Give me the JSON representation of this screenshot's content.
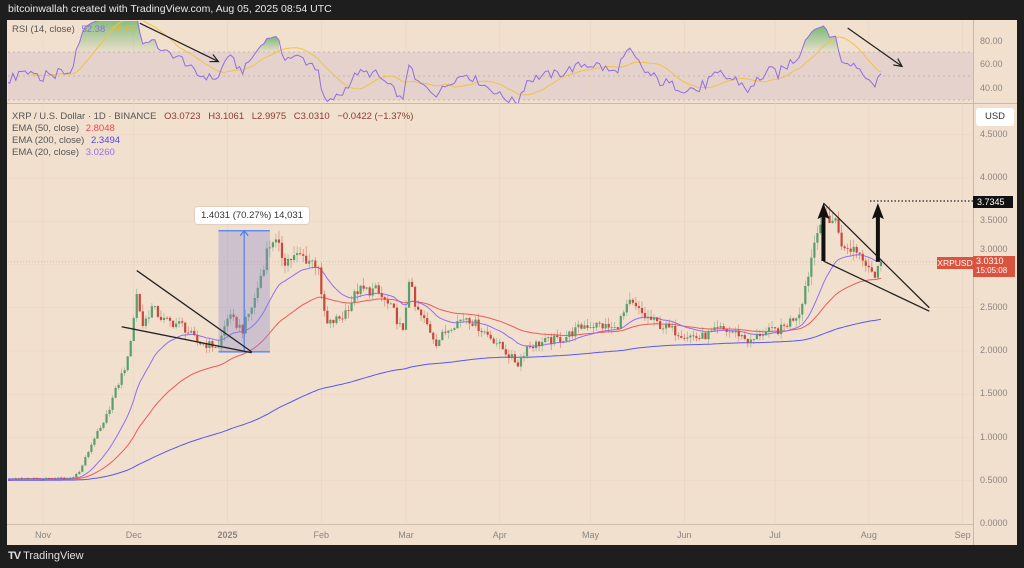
{
  "header": {
    "text": "bitcoinwallah created with TradingView.com, Aug 05, 2025 08:54 UTC"
  },
  "rsi_legend": {
    "label": "RSI (14, close)",
    "rsi_value": "52.38",
    "ma_value": "55.57"
  },
  "legend": {
    "symbol": "XRP / U.S. Dollar · 1D · BINANCE",
    "open": "O3.0723",
    "high": "H3.1061",
    "low": "L2.9975",
    "close": "C3.0310",
    "change": "−0.0422 (−1.37%)",
    "ema50_label": "EMA (50, close)",
    "ema50_value": "2.8048",
    "ema200_label": "EMA (200, close)",
    "ema200_value": "2.3494",
    "ema20_label": "EMA (20, close)",
    "ema20_value": "3.0260"
  },
  "currency_button": "USD",
  "price_tag": {
    "symbol": "XRPUSD",
    "price": "3.0310",
    "countdown": "15:05:08"
  },
  "target_tag": "3.7345",
  "measure_label": "1.4031 (70.27%) 14,031",
  "footer": {
    "brand": "TradingView"
  },
  "colors": {
    "up": "#5a9e6e",
    "down": "#c9483c",
    "ema20": "#8f6ff0",
    "ema50": "#ee5a5a",
    "ema200": "#5a56ee",
    "rsi": "#8f6fe0",
    "rsi_ma": "#f0c24a",
    "background": "#f2e0cf"
  },
  "chart_data": [
    {
      "type": "candlestick",
      "title": "XRP / U.S. Dollar · 1D · BINANCE",
      "y_axis": {
        "ticks": [
          "4.5000",
          "4.0000",
          "3.5000",
          "3.0000",
          "2.5000",
          "2.0000",
          "1.5000",
          "1.0000",
          "0.5000",
          "0.0000"
        ],
        "range": [
          0,
          4.8
        ],
        "side": "right"
      },
      "x_axis": {
        "ticks": [
          "Nov",
          "Dec",
          "2025",
          "Feb",
          "Mar",
          "Apr",
          "May",
          "Jun",
          "Jul",
          "Aug",
          "Sep"
        ]
      },
      "grid": true,
      "approx_closes": [
        [
          "2024-10-01",
          0.53
        ],
        [
          "2024-10-21",
          0.52
        ],
        [
          "2024-11-10",
          0.53
        ],
        [
          "2024-11-13",
          0.6
        ],
        [
          "2024-11-18",
          1.0
        ],
        [
          "2024-11-21",
          1.15
        ],
        [
          "2024-11-24",
          1.45
        ],
        [
          "2024-11-29",
          1.9
        ],
        [
          "2024-12-02",
          2.65
        ],
        [
          "2024-12-04",
          2.3
        ],
        [
          "2024-12-07",
          2.5
        ],
        [
          "2024-12-11",
          2.35
        ],
        [
          "2024-12-17",
          2.3
        ],
        [
          "2024-12-22",
          2.1
        ],
        [
          "2024-12-29",
          2.05
        ],
        [
          "2025-01-01",
          2.4
        ],
        [
          "2025-01-06",
          2.25
        ],
        [
          "2025-01-10",
          2.6
        ],
        [
          "2025-01-14",
          3.15
        ],
        [
          "2025-01-16",
          3.3
        ],
        [
          "2025-01-20",
          3.05
        ],
        [
          "2025-01-25",
          3.1
        ],
        [
          "2025-01-31",
          3.0
        ],
        [
          "2025-02-01",
          2.6
        ],
        [
          "2025-02-03",
          2.3
        ],
        [
          "2025-02-08",
          2.4
        ],
        [
          "2025-02-13",
          2.7
        ],
        [
          "2025-02-19",
          2.7
        ],
        [
          "2025-02-25",
          2.45
        ],
        [
          "2025-02-28",
          2.2
        ],
        [
          "2025-03-02",
          2.85
        ],
        [
          "2025-03-04",
          2.5
        ],
        [
          "2025-03-08",
          2.3
        ],
        [
          "2025-03-11",
          2.1
        ],
        [
          "2025-03-16",
          2.3
        ],
        [
          "2025-03-21",
          2.4
        ],
        [
          "2025-03-26",
          2.25
        ],
        [
          "2025-03-31",
          2.1
        ],
        [
          "2025-04-04",
          1.95
        ],
        [
          "2025-04-07",
          1.85
        ],
        [
          "2025-04-10",
          2.05
        ],
        [
          "2025-04-15",
          2.1
        ],
        [
          "2025-04-22",
          2.15
        ],
        [
          "2025-04-29",
          2.3
        ],
        [
          "2025-05-04",
          2.3
        ],
        [
          "2025-05-09",
          2.25
        ],
        [
          "2025-05-14",
          2.55
        ],
        [
          "2025-05-19",
          2.4
        ],
        [
          "2025-05-24",
          2.3
        ],
        [
          "2025-05-31",
          2.2
        ],
        [
          "2025-06-06",
          2.15
        ],
        [
          "2025-06-13",
          2.25
        ],
        [
          "2025-06-19",
          2.2
        ],
        [
          "2025-06-23",
          2.1
        ],
        [
          "2025-06-26",
          2.2
        ],
        [
          "2025-07-03",
          2.25
        ],
        [
          "2025-07-09",
          2.45
        ],
        [
          "2025-07-12",
          2.9
        ],
        [
          "2025-07-15",
          3.45
        ],
        [
          "2025-07-18",
          3.55
        ],
        [
          "2025-07-21",
          3.5
        ],
        [
          "2025-07-24",
          3.15
        ],
        [
          "2025-07-27",
          3.2
        ],
        [
          "2025-07-30",
          3.1
        ],
        [
          "2025-08-02",
          2.95
        ],
        [
          "2025-08-03",
          2.85
        ],
        [
          "2025-08-05",
          3.031
        ]
      ],
      "indicators": [
        "EMA 20",
        "EMA 50",
        "EMA 200"
      ],
      "annotations": {
        "measure": {
          "from": 1.99,
          "to": 3.39,
          "start": "2024-12-29",
          "end": "2025-01-15",
          "label": "1.4031 (70.27%) 14,031"
        },
        "target_level": 3.7345,
        "wedges": [
          {
            "upper": [
              [
                "2024-12-02",
                2.93
              ],
              [
                "2025-01-09",
                1.99
              ]
            ],
            "lower": [
              [
                "2024-11-27",
                2.28
              ],
              [
                "2025-01-09",
                1.98
              ]
            ]
          },
          {
            "upper": [
              [
                "2025-07-17",
                3.71
              ],
              [
                "2025-08-21",
                2.5
              ]
            ],
            "lower": [
              [
                "2025-07-17",
                3.04
              ],
              [
                "2025-08-21",
                2.46
              ]
            ]
          }
        ],
        "arrows_up": [
          {
            "date": "2025-07-17",
            "from": 3.04,
            "to": 3.71
          },
          {
            "date": "2025-08-04",
            "from": 3.03,
            "to": 3.71
          }
        ]
      }
    },
    {
      "type": "line",
      "title": "RSI (14, close)",
      "y_axis": {
        "ticks": [
          "80.00",
          "60.00",
          "40.00"
        ],
        "band": [
          30,
          70
        ]
      },
      "series": [
        {
          "name": "RSI (14, close)",
          "value": 52.38
        },
        {
          "name": "RSI MA",
          "value": 55.57
        }
      ],
      "annotations": {
        "arrows_down": [
          {
            "from": [
              "2024-12-03",
              94
            ],
            "to": [
              "2024-12-29",
              62
            ]
          },
          {
            "from": [
              "2025-07-25",
              90
            ],
            "to": [
              "2025-08-12",
              58
            ]
          }
        ]
      }
    }
  ]
}
